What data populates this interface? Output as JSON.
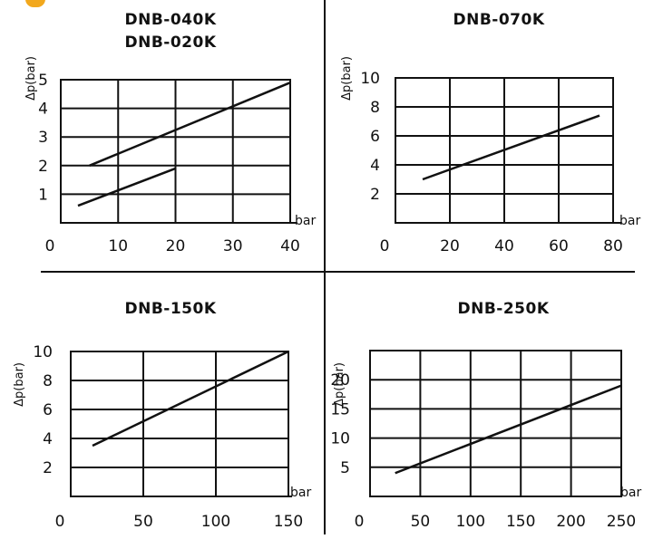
{
  "colors": {
    "ink": "#111111",
    "logo_accent": "#f2a81d"
  },
  "chart_data": [
    {
      "type": "line",
      "title": [
        "DNB-040K",
        "DNB-020K"
      ],
      "xlabel": "bar",
      "ylabel": "Δp(bar)",
      "xlim": [
        0,
        40
      ],
      "ylim": [
        0,
        5
      ],
      "x_ticks": [
        "0",
        "10",
        "20",
        "30",
        "40"
      ],
      "y_ticks": [
        "1",
        "2",
        "3",
        "4",
        "5"
      ],
      "grid": true,
      "series": [
        {
          "x": [
            5,
            40
          ],
          "y": [
            2.0,
            4.9
          ]
        },
        {
          "x": [
            3,
            20
          ],
          "y": [
            0.6,
            1.9
          ]
        }
      ]
    },
    {
      "type": "line",
      "title": [
        "DNB-070K"
      ],
      "xlabel": "bar",
      "ylabel": "Δp(bar)",
      "xlim": [
        0,
        80
      ],
      "ylim": [
        0,
        10
      ],
      "x_ticks": [
        "0",
        "20",
        "40",
        "60",
        "80"
      ],
      "y_ticks": [
        "2",
        "4",
        "6",
        "8",
        "10"
      ],
      "grid": true,
      "series": [
        {
          "x": [
            10,
            75
          ],
          "y": [
            3.0,
            7.4
          ]
        }
      ]
    },
    {
      "type": "line",
      "title": [
        "DNB-150K"
      ],
      "xlabel": "bar",
      "ylabel": "Δp(bar)",
      "xlim": [
        0,
        150
      ],
      "ylim": [
        0,
        10
      ],
      "x_ticks": [
        "0",
        "50",
        "100",
        "150"
      ],
      "y_ticks": [
        "2",
        "4",
        "6",
        "8",
        "10"
      ],
      "grid": true,
      "series": [
        {
          "x": [
            15,
            150
          ],
          "y": [
            3.5,
            10.0
          ]
        }
      ]
    },
    {
      "type": "line",
      "title": [
        "DNB-250K"
      ],
      "xlabel": "bar",
      "ylabel": "Δp(bar)",
      "xlim": [
        0,
        250
      ],
      "ylim": [
        0,
        25
      ],
      "x_ticks": [
        "0",
        "50",
        "100",
        "150",
        "200",
        "250"
      ],
      "y_ticks": [
        "5",
        "10",
        "15",
        "20"
      ],
      "grid": true,
      "series": [
        {
          "x": [
            25,
            250
          ],
          "y": [
            4.0,
            19.0
          ]
        }
      ]
    }
  ]
}
